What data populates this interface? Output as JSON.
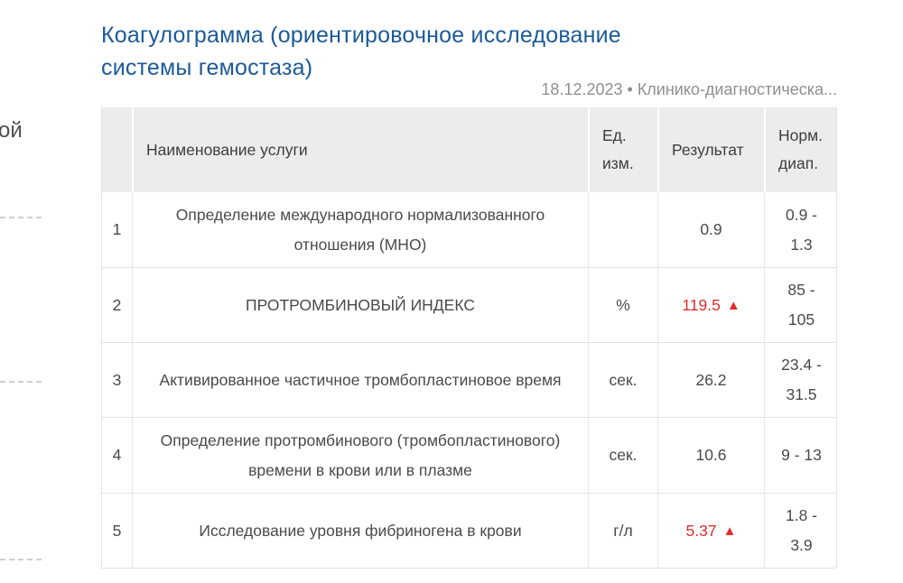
{
  "left_edge": {
    "fragment": "ой"
  },
  "header": {
    "title": "Коагулограмма (ориентировочное исследование системы гемостаза)",
    "meta": "18.12.2023 • Клинико-диагностическа..."
  },
  "table": {
    "headers": {
      "number": "",
      "name": "Наименование услуги",
      "unit": "Ед. изм.",
      "result": "Результат",
      "range": "Норм. диап."
    },
    "high_icon": "▲",
    "rows": [
      {
        "num": "1",
        "name": "Определение международного нормализованного отношения (МНО)",
        "unit": "",
        "result": "0.9",
        "high": false,
        "range": "0.9 - 1.3"
      },
      {
        "num": "2",
        "name": "ПРОТРОМБИНОВЫЙ ИНДЕКС",
        "unit": "%",
        "result": "119.5",
        "high": true,
        "range": "85 - 105"
      },
      {
        "num": "3",
        "name": "Активированное частичное тромбопластиновое время",
        "unit": "сек.",
        "result": "26.2",
        "high": false,
        "range": "23.4 - 31.5"
      },
      {
        "num": "4",
        "name": "Определение протромбинового (тромбопластинового) времени в крови или в плазме",
        "unit": "сек.",
        "result": "10.6",
        "high": false,
        "range": "9 - 13"
      },
      {
        "num": "5",
        "name": "Исследование уровня фибриногена в крови",
        "unit": "г/л",
        "result": "5.37",
        "high": true,
        "range": "1.8 - 3.9"
      }
    ]
  },
  "colors": {
    "title_blue": "#1c5a99",
    "alert_red": "#e22b2b",
    "header_bg": "#ececec",
    "body_text": "#4a4a4a",
    "muted_text": "#8f8f8f",
    "border": "#e2e2e2"
  }
}
